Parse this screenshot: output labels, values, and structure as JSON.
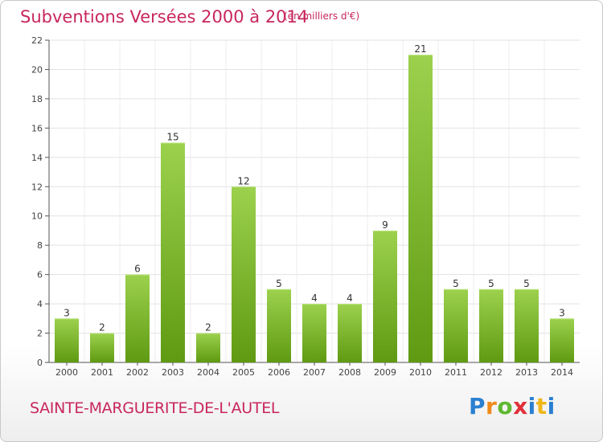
{
  "header": {
    "title": "Subventions Versées 2000 à 2014",
    "subtitle": "(en milliers d'€)"
  },
  "footer": {
    "commune": "SAINTE-MARGUERITE-DE-L'AUTEL",
    "logo": "Proxiti"
  },
  "colors": {
    "bar_top": "#9cd14e",
    "bar_bottom": "#5f9a12",
    "title": "#c8265e",
    "axis": "#555555",
    "grid": "#e2e2e2"
  },
  "chart_data": {
    "type": "bar",
    "title": "Subventions Versées 2000 à 2014",
    "subtitle": "(en milliers d'€)",
    "categories": [
      "2000",
      "2001",
      "2002",
      "2003",
      "2004",
      "2005",
      "2006",
      "2007",
      "2008",
      "2009",
      "2010",
      "2011",
      "2012",
      "2013",
      "2014"
    ],
    "values": [
      3,
      2,
      6,
      15,
      2,
      12,
      5,
      4,
      4,
      9,
      21,
      5,
      5,
      5,
      3
    ],
    "ylim": [
      0,
      22
    ],
    "yticks": [
      0,
      2,
      4,
      6,
      8,
      10,
      12,
      14,
      16,
      18,
      20,
      22
    ],
    "grid": true,
    "data_labels": true
  }
}
